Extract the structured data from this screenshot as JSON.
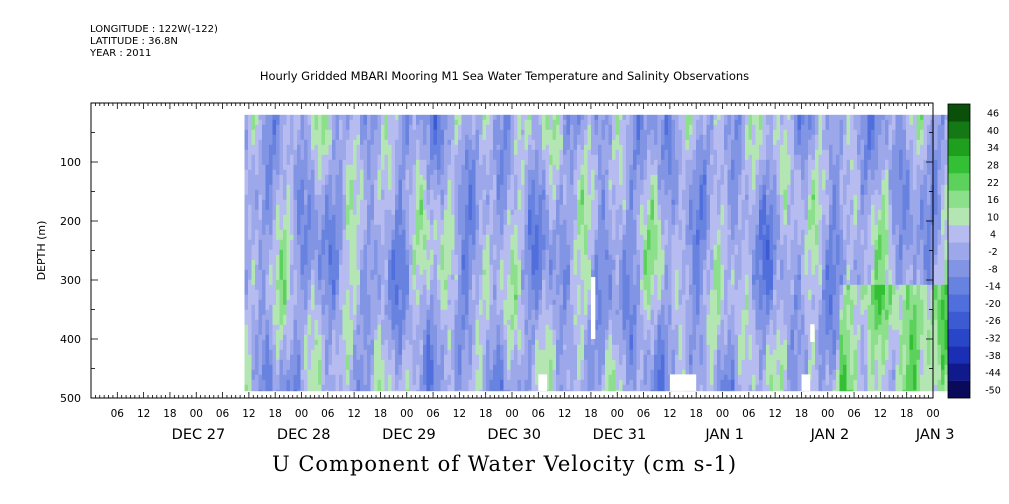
{
  "header": {
    "longitude": "LONGITUDE : 122W(-122)",
    "latitude": "LATITUDE : 36.8N",
    "year": "YEAR : 2011"
  },
  "chart_data": {
    "type": "heatmap",
    "title": "Hourly Gridded MBARI Mooring M1 Sea Water Temperature and Salinity Observations",
    "subtitle": "U Component of Water Velocity (cm s-1)",
    "ylabel": "DEPTH (m)",
    "ylim": [
      500,
      0
    ],
    "y_reversed": true,
    "y_ticks": [
      100,
      200,
      300,
      400,
      500
    ],
    "x_start": "2011-12-26 00:00",
    "x_end": "2012-01-03 00:00",
    "x_data_range": [
      "2011-12-27 11:00",
      "2012-01-03 05:00"
    ],
    "depth_range_m": [
      20,
      488
    ],
    "x_hour_labels": [
      "06",
      "12",
      "18",
      "00",
      "06",
      "12",
      "18",
      "00",
      "06",
      "12",
      "18",
      "00",
      "06",
      "12",
      "18",
      "00",
      "06",
      "12",
      "18",
      "00",
      "06",
      "12",
      "18",
      "00",
      "06",
      "12",
      "18",
      "00",
      "06",
      "12",
      "18",
      "00"
    ],
    "x_day_labels": [
      "DEC 27",
      "DEC 28",
      "DEC 29",
      "DEC 30",
      "DEC 31",
      "JAN  1",
      "JAN  2",
      "JAN  3"
    ],
    "colorbar": {
      "levels": [
        -50,
        -44,
        -38,
        -32,
        -26,
        -20,
        -14,
        -8,
        -2,
        4,
        10,
        16,
        22,
        28,
        34,
        40,
        46
      ],
      "labels": [
        "46",
        "40",
        "34",
        "28",
        "22",
        "16",
        "10",
        "4",
        "-2",
        "-8",
        "-14",
        "-20",
        "-26",
        "-32",
        "-38",
        "-44",
        "-50"
      ],
      "colors": [
        "#0a0a5a",
        "#101a8c",
        "#1a2fb4",
        "#2846c8",
        "#3c5ad2",
        "#506edc",
        "#6882e0",
        "#8294e4",
        "#9ca8ea",
        "#b6bcf0",
        "#b4e6b4",
        "#8ce08c",
        "#5cd25c",
        "#34c034",
        "#1ea01e",
        "#147814",
        "#0a500a"
      ]
    },
    "gaps": [
      {
        "start": "2011-12-30 06:00",
        "end": "2011-12-30 08:00",
        "depth": [
          460,
          488
        ]
      },
      {
        "start": "2011-12-30 18:00",
        "end": "2011-12-30 19:00",
        "depth": [
          295,
          400
        ]
      },
      {
        "start": "2011-12-31 12:00",
        "end": "2011-12-31 18:00",
        "depth": [
          460,
          488
        ]
      },
      {
        "start": "2012-01-01 18:00",
        "end": "2012-01-01 20:00",
        "depth": [
          460,
          488
        ]
      },
      {
        "start": "2012-01-01 20:00",
        "end": "2012-01-01 21:00",
        "depth": [
          375,
          405
        ]
      }
    ]
  }
}
